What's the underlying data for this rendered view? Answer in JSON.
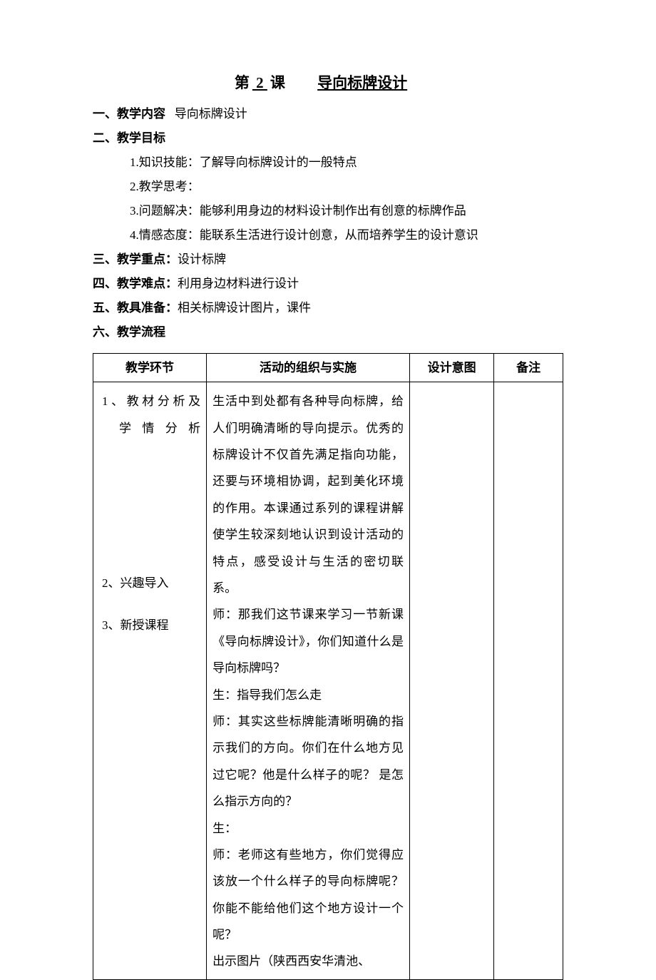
{
  "title": {
    "prefix": "第",
    "lesson_number": " 2 ",
    "mid": "课",
    "lesson_name": "导向标牌设计"
  },
  "sections": {
    "content": {
      "label": "一、教学内容",
      "text": "导向标牌设计"
    },
    "objectives": {
      "label": "二、教学目标",
      "items": {
        "skill": "1.知识技能：了解导向标牌设计的一般特点",
        "thinking": "2.教学思考：",
        "problem": "3.问题解决：能够利用身边的材料设计制作出有创意的标牌作品",
        "attitude": "4.情感态度：能联系生活进行设计创意，从而培养学生的设计意识"
      }
    },
    "key_point": {
      "label": "三、教学重点：",
      "text": "设计标牌"
    },
    "difficulty": {
      "label": "四、教学难点：",
      "text": "利用身边材料进行设计"
    },
    "materials": {
      "label": "五、教具准备：",
      "text": "相关标牌设计图片，课件"
    },
    "process": {
      "label": "六、教学流程"
    }
  },
  "table": {
    "headers": {
      "col1": "教学环节",
      "col2": "活动的组织与实施",
      "col3": "设计意图",
      "col4": "备注"
    },
    "stages": {
      "s1a": "1、教材分析及",
      "s1b": "学情分析",
      "s2": "2、兴趣导入",
      "s3": "3、新授课程"
    },
    "activity_text": "生活中到处都有各种导向标牌，给人们明确清晰的导向提示。优秀的标牌设计不仅首先满足指向功能，还要与环境相协调，起到美化环境的作用。本课通过系列的课程讲解使学生较深刻地认识到设计活动的特点，感受设计与生活的密切联系。\n师：那我们这节课来学习一节新课《导向标牌设计》，你们知道什么是导向标牌吗？\n生：指导我们怎么走\n师：其实这些标牌能清晰明确的指示我们的方向。你们在什么地方见过它呢？他是什么样子的呢？  是怎么指示方向的？\n生：\n师：老师这有些地方，你们觉得应该放一个什么样子的导向标牌呢？你能不能给他们这个地方设计一个呢？\n出示图片（陕西西安华清池、"
  }
}
